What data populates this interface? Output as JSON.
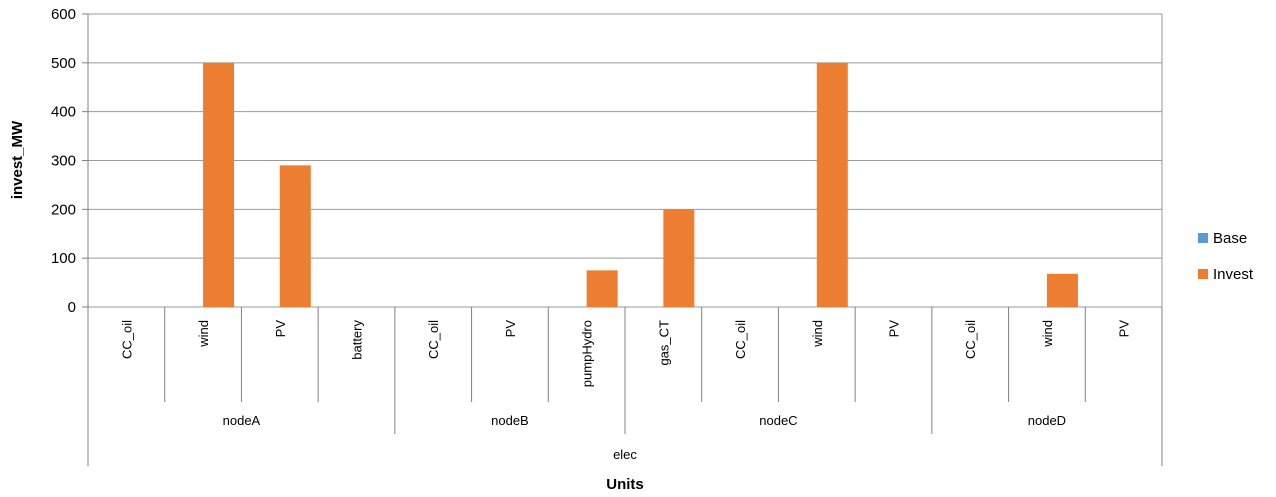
{
  "chart_data": {
    "type": "bar",
    "ylabel": "invest_MW",
    "xlabel": "Units",
    "ylim": [
      0,
      600
    ],
    "yticks": [
      0,
      100,
      200,
      300,
      400,
      500,
      600
    ],
    "grid": true,
    "legend_position": "right",
    "categories": [
      "CC_oil",
      "wind",
      "PV",
      "battery",
      "CC_oil",
      "PV",
      "pumpHydro",
      "gas_CT",
      "CC_oil",
      "wind",
      "PV",
      "CC_oil",
      "wind",
      "PV"
    ],
    "node_groups": [
      {
        "label": "nodeA",
        "count": 4
      },
      {
        "label": "nodeB",
        "count": 3
      },
      {
        "label": "nodeC",
        "count": 4
      },
      {
        "label": "nodeD",
        "count": 3
      }
    ],
    "outer_group": {
      "label": "elec",
      "count": 14
    },
    "series": [
      {
        "name": "Base",
        "color": "#5b9bd5",
        "values": [
          0,
          0,
          0,
          0,
          0,
          0,
          0,
          0,
          0,
          0,
          0,
          0,
          0,
          0
        ]
      },
      {
        "name": "Invest",
        "color": "#ed7d31",
        "values": [
          0,
          500,
          290,
          0,
          0,
          0,
          75,
          200,
          0,
          500,
          0,
          0,
          68,
          0
        ]
      }
    ]
  }
}
